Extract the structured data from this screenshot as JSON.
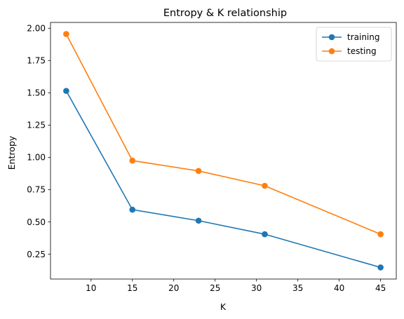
{
  "chart_data": {
    "type": "line",
    "title": "Entropy & K relationship",
    "xlabel": "K",
    "ylabel": "Entropy",
    "x": [
      7,
      15,
      23,
      31,
      45
    ],
    "series": [
      {
        "name": "training",
        "values": [
          1.515,
          0.595,
          0.51,
          0.405,
          0.148
        ],
        "color": "#1f77b4"
      },
      {
        "name": "testing",
        "values": [
          1.955,
          0.975,
          0.895,
          0.78,
          0.405
        ],
        "color": "#ff7f0e"
      }
    ],
    "xticks": [
      10,
      15,
      20,
      25,
      30,
      35,
      40,
      45
    ],
    "xtick_labels": [
      "10",
      "15",
      "20",
      "25",
      "30",
      "35",
      "40",
      "45"
    ],
    "yticks": [
      0.25,
      0.5,
      0.75,
      1.0,
      1.25,
      1.5,
      1.75,
      2.0
    ],
    "ytick_labels": [
      "0.25",
      "0.50",
      "0.75",
      "1.00",
      "1.25",
      "1.50",
      "1.75",
      "2.00"
    ],
    "xlim": [
      5.1,
      46.9
    ],
    "ylim": [
      0.058,
      2.045
    ],
    "grid": false,
    "legend_position": "top-right"
  }
}
